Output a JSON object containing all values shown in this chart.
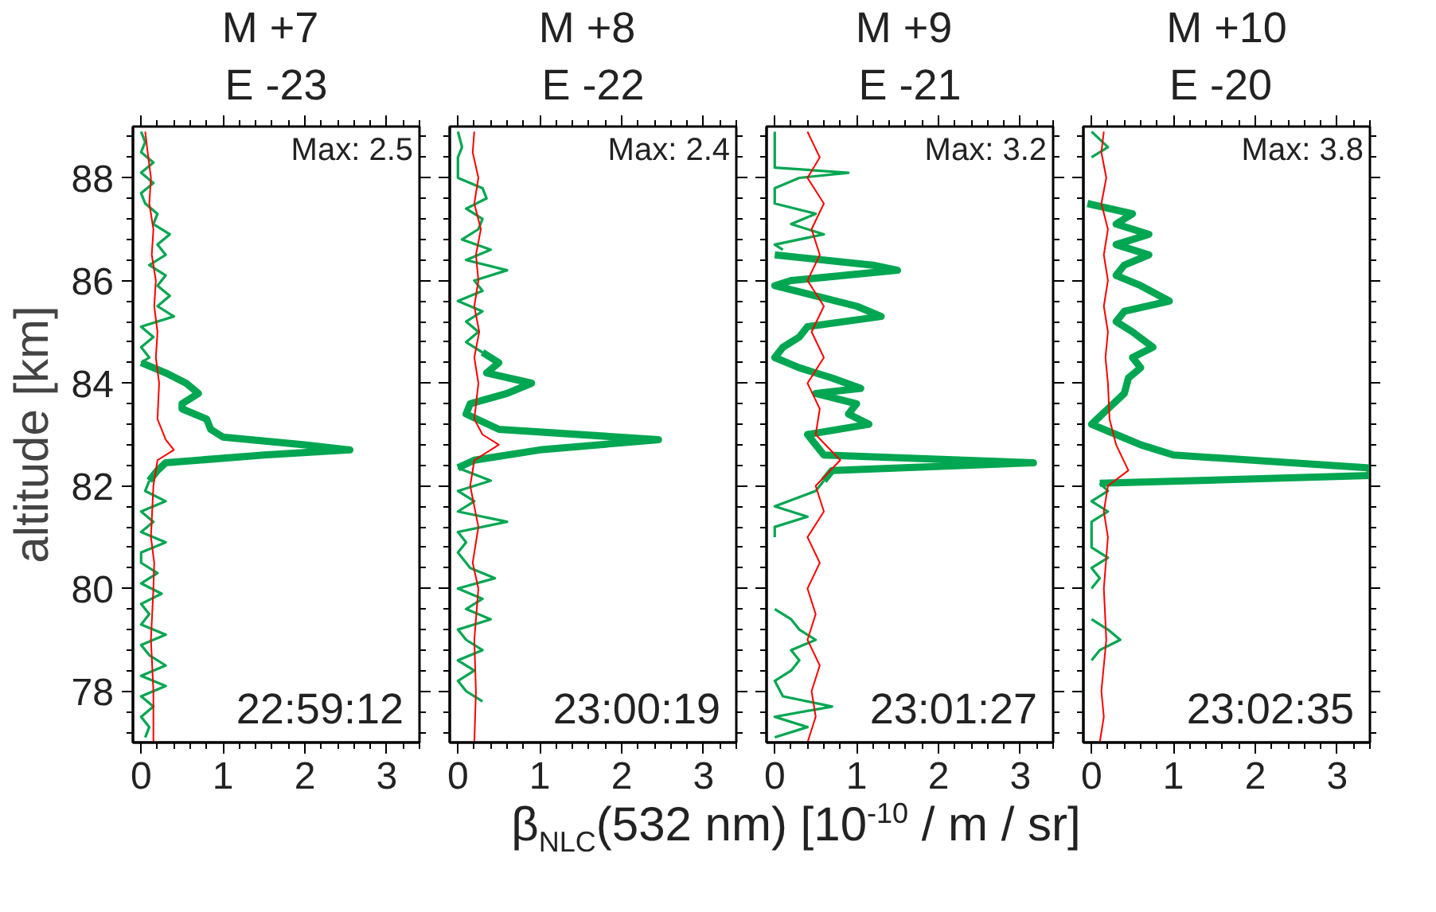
{
  "chart_data": [
    {
      "type": "line",
      "title": "M  +7",
      "subtitle": "E -23",
      "ylabel": "altitude [km]",
      "xlabel": "β$_{NLC}$(532 nm) [10$^{-10}$ / m / sr]",
      "xlim": [
        -0.1,
        3.4
      ],
      "xticks": [
        0,
        1,
        2,
        3
      ],
      "ylim": [
        77,
        89
      ],
      "yticks": [
        78,
        80,
        82,
        84,
        86,
        88
      ],
      "annotations": [
        "Max: 2.5",
        "22:59:12"
      ],
      "series": [
        {
          "color": "#00a651",
          "x": [
            0.0,
            0.05,
            0.0,
            0.15,
            0.0,
            0.15,
            0.0,
            0.05,
            0.2,
            0.15,
            0.35,
            0.2,
            0.3,
            0.1,
            0.3,
            0.2,
            0.35,
            0.2,
            0.4,
            0.0,
            0.15,
            0.0,
            0.1,
            0.0,
            null,
            0.1,
            0.05,
            0.3,
            0.0,
            0.15,
            0.0,
            0.3,
            0.0,
            0.0,
            0.2,
            0.0,
            0.25,
            0.0,
            0.1,
            0.0,
            0.3,
            0.0,
            0.1,
            0.3,
            0.0,
            0.3,
            0.0,
            0.15,
            0.0,
            0.1,
            0.05
          ],
          "values": [
            88.9,
            88.7,
            88.5,
            88.3,
            88.1,
            87.9,
            87.7,
            87.5,
            87.3,
            87.1,
            86.9,
            86.7,
            86.5,
            86.3,
            86.1,
            85.9,
            85.7,
            85.5,
            85.3,
            85.1,
            84.9,
            84.7,
            84.5,
            84.4,
            null,
            82.1,
            81.9,
            81.7,
            81.5,
            81.3,
            81.1,
            80.9,
            80.7,
            80.5,
            80.3,
            80.1,
            79.9,
            79.7,
            79.5,
            79.3,
            79.1,
            78.9,
            78.7,
            78.5,
            78.3,
            78.1,
            77.9,
            77.7,
            77.5,
            77.3,
            77.1
          ]
        },
        {
          "color": "#00a651",
          "x": [
            0.0,
            0.3,
            0.55,
            0.7,
            0.5,
            0.5,
            0.8,
            0.85,
            1.0,
            2.0,
            2.55,
            1.5,
            0.3,
            0.2,
            0.1
          ],
          "values": [
            84.4,
            84.2,
            84.0,
            83.8,
            83.6,
            83.5,
            83.3,
            83.1,
            82.95,
            82.8,
            82.7,
            82.6,
            82.45,
            82.3,
            82.1
          ]
        },
        {
          "color": "#ff0000",
          "x": [
            0.05,
            0.08,
            0.12,
            0.1,
            0.15,
            0.13,
            0.18,
            0.16,
            0.2,
            0.18,
            0.22,
            0.2,
            0.3,
            0.4,
            0.2,
            0.15,
            0.12,
            0.16,
            0.15,
            0.12,
            0.15,
            0.15
          ],
          "values": [
            88.9,
            88.5,
            88.0,
            87.5,
            87.0,
            86.5,
            86.0,
            85.5,
            85.0,
            84.5,
            84.0,
            83.3,
            82.9,
            82.7,
            82.5,
            82.0,
            81.0,
            80.5,
            80.0,
            79.0,
            78.0,
            77.0
          ]
        }
      ]
    },
    {
      "type": "line",
      "title": "M  +8",
      "subtitle": "E -22",
      "xlim": [
        -0.1,
        3.4
      ],
      "xticks": [
        0,
        1,
        2,
        3
      ],
      "ylim": [
        77,
        89
      ],
      "yticks": [
        78,
        80,
        82,
        84,
        86,
        88
      ],
      "tick_labels": "x",
      "annotations": [
        "Max: 2.4",
        "23:00:19"
      ],
      "series": [
        {
          "color": "#00a651",
          "x": [
            0.0,
            0.05,
            0.0,
            0.0,
            0.0,
            0.3,
            0.35,
            0.1,
            0.3,
            0.25,
            0.05,
            0.4,
            0.1,
            0.6,
            0.2,
            0.3,
            0.0,
            0.3,
            0.1,
            0.25,
            0.1,
            0.3,
            null,
            0.0,
            0.4,
            0.0,
            0.2,
            0.0,
            0.6,
            0.0,
            0.1,
            0.0,
            0.15,
            0.45,
            0.0,
            0.3,
            0.1,
            0.4,
            0.0,
            0.1,
            0.3,
            0.0,
            0.2,
            0.0,
            0.1,
            0.3
          ],
          "values": [
            88.9,
            88.6,
            88.4,
            88.2,
            88.0,
            87.8,
            87.6,
            87.4,
            87.2,
            87.0,
            86.8,
            86.6,
            86.4,
            86.2,
            86.0,
            85.8,
            85.6,
            85.4,
            85.2,
            85.0,
            84.8,
            84.6,
            null,
            82.35,
            82.1,
            81.9,
            81.7,
            81.5,
            81.3,
            81.1,
            80.9,
            80.7,
            80.4,
            80.2,
            80.0,
            79.8,
            79.6,
            79.4,
            79.2,
            79.0,
            78.8,
            78.6,
            78.4,
            78.2,
            78.0,
            77.8
          ]
        },
        {
          "color": "#00a651",
          "x": [
            0.3,
            0.5,
            0.35,
            0.9,
            0.6,
            0.15,
            0.1,
            0.5,
            2.45,
            1.0,
            0.2,
            0.0
          ],
          "values": [
            84.6,
            84.4,
            84.2,
            84.0,
            83.8,
            83.6,
            83.4,
            83.1,
            82.9,
            82.7,
            82.5,
            82.35
          ]
        },
        {
          "color": "#ff0000",
          "x": [
            0.2,
            0.18,
            0.25,
            0.2,
            0.28,
            0.22,
            0.25,
            0.2,
            0.26,
            0.2,
            0.25,
            0.2,
            0.3,
            0.5,
            0.2,
            0.15,
            0.25,
            0.18,
            0.25,
            0.2,
            0.22,
            0.2
          ],
          "values": [
            88.9,
            88.5,
            88.0,
            87.5,
            87.0,
            86.5,
            86.0,
            85.5,
            85.0,
            84.5,
            84.0,
            83.3,
            83.0,
            82.8,
            82.5,
            82.0,
            81.2,
            80.5,
            80.0,
            79.0,
            78.0,
            77.0
          ]
        }
      ]
    },
    {
      "type": "line",
      "title": "M  +9",
      "subtitle": "E -21",
      "xlim": [
        -0.1,
        3.4
      ],
      "xticks": [
        0,
        1,
        2,
        3
      ],
      "ylim": [
        77,
        89
      ],
      "yticks": [
        78,
        80,
        82,
        84,
        86,
        88
      ],
      "tick_labels": "x",
      "annotations": [
        "Max: 3.2",
        "23:01:27"
      ],
      "series": [
        {
          "color": "#00a651",
          "x": [
            0.0,
            0.0,
            0.0,
            0.0,
            0.9,
            0.3,
            0.0,
            0.0,
            0.5,
            0.2,
            0.6,
            0.0,
            0.1,
            null,
            0.6,
            0.5,
            0.0,
            0.4,
            0.0,
            0.0,
            null,
            0.0,
            0.2,
            0.3,
            0.5,
            0.2,
            0.3,
            0.2,
            0.0,
            0.1,
            0.7,
            0.0,
            0.4,
            0.0
          ],
          "values": [
            88.9,
            88.6,
            88.4,
            88.2,
            88.1,
            88.0,
            87.8,
            87.5,
            87.3,
            87.1,
            86.9,
            86.7,
            86.6,
            null,
            82.1,
            81.9,
            81.6,
            81.4,
            81.2,
            81.0,
            null,
            79.6,
            79.4,
            79.2,
            79.0,
            78.8,
            78.6,
            78.4,
            78.2,
            77.9,
            77.7,
            77.5,
            77.3,
            77.1
          ]
        },
        {
          "color": "#00a651",
          "x": [
            0.0,
            1.2,
            1.5,
            0.2,
            0.0,
            0.5,
            1.0,
            1.3,
            0.4,
            0.3,
            0.1,
            0.0,
            0.3,
            0.7,
            1.05,
            0.5,
            1.0,
            0.9,
            1.15,
            0.4,
            0.5,
            0.6,
            3.16,
            0.7,
            0.6
          ],
          "values": [
            86.5,
            86.3,
            86.2,
            86.0,
            85.9,
            85.7,
            85.5,
            85.3,
            85.1,
            84.9,
            84.7,
            84.5,
            84.3,
            84.1,
            83.9,
            83.8,
            83.6,
            83.4,
            83.2,
            83.0,
            82.8,
            82.6,
            82.45,
            82.3,
            82.1
          ]
        },
        {
          "color": "#ff0000",
          "x": [
            0.4,
            0.55,
            0.4,
            0.6,
            0.45,
            0.55,
            0.4,
            0.6,
            0.45,
            0.6,
            0.4,
            0.55,
            0.5,
            0.8,
            0.5,
            0.6,
            0.4,
            0.55,
            0.4,
            0.5,
            0.4,
            0.55,
            0.45,
            0.5,
            0.4
          ],
          "values": [
            88.9,
            88.4,
            88.0,
            87.5,
            87.0,
            86.5,
            86.0,
            85.5,
            85.0,
            84.5,
            84.0,
            83.5,
            83.0,
            82.5,
            82.0,
            81.5,
            81.0,
            80.5,
            80.0,
            79.5,
            79.0,
            78.5,
            78.0,
            77.5,
            77.0
          ]
        }
      ]
    },
    {
      "type": "line",
      "title": "M +10",
      "subtitle": "E  -20",
      "xlim": [
        -0.1,
        3.4
      ],
      "xticks": [
        0,
        1,
        2,
        3
      ],
      "ylim": [
        77,
        89
      ],
      "yticks": [
        78,
        80,
        82,
        84,
        86,
        88
      ],
      "tick_labels": "x",
      "annotations": [
        "Max: 3.8",
        "23:02:35"
      ],
      "series": [
        {
          "color": "#00a651",
          "x": [
            0.0,
            0.2,
            0.0,
            null,
            0.1,
            0.2,
            0.0,
            0.2,
            0.0,
            0.0,
            0.2,
            0.0,
            0.1,
            0.0,
            null,
            0.0,
            0.2,
            0.35,
            0.1,
            0.0
          ],
          "values": [
            88.9,
            88.6,
            88.4,
            null,
            82.05,
            81.9,
            81.7,
            81.5,
            81.3,
            80.8,
            80.6,
            80.4,
            80.2,
            80.0,
            null,
            79.4,
            79.2,
            79.0,
            78.8,
            78.6
          ]
        },
        {
          "color": "#00a651",
          "x": [
            -0.05,
            0.5,
            0.3,
            0.7,
            0.3,
            0.7,
            0.4,
            0.3,
            0.6,
            0.95,
            0.4,
            0.3,
            0.5,
            0.75,
            0.5,
            0.6,
            0.45,
            0.4,
            0.2,
            0.0,
            0.3,
            0.6,
            1.0,
            3.4,
            3.4,
            0.1
          ],
          "values": [
            87.5,
            87.3,
            87.1,
            86.9,
            86.7,
            86.5,
            86.3,
            86.1,
            85.9,
            85.6,
            85.4,
            85.2,
            85.0,
            84.7,
            84.5,
            84.3,
            84.1,
            83.8,
            83.5,
            83.2,
            83.0,
            82.8,
            82.6,
            82.35,
            82.2,
            82.05
          ]
        },
        {
          "color": "#ff0000",
          "x": [
            0.15,
            0.12,
            0.18,
            0.12,
            0.2,
            0.15,
            0.2,
            0.15,
            0.2,
            0.17,
            0.2,
            0.22,
            0.3,
            0.45,
            0.2,
            0.15,
            0.2,
            0.15,
            0.18,
            0.12,
            0.15,
            0.1
          ],
          "values": [
            88.9,
            88.5,
            88.0,
            87.5,
            87.0,
            86.5,
            86.0,
            85.5,
            85.0,
            84.5,
            84.0,
            83.3,
            82.8,
            82.3,
            82.0,
            81.5,
            81.0,
            80.0,
            79.0,
            78.0,
            77.5,
            77.0
          ]
        }
      ]
    }
  ]
}
